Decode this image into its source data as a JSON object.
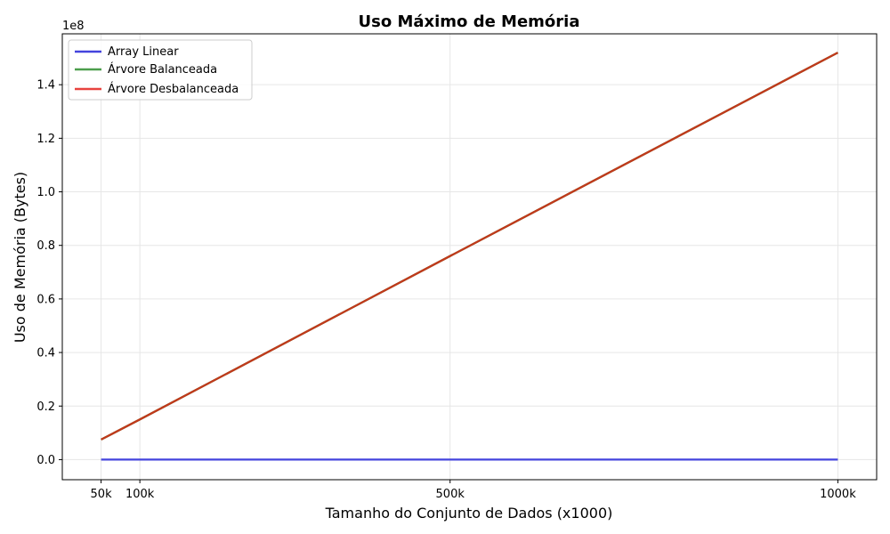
{
  "chart_data": {
    "type": "line",
    "title": "Uso Máximo de Memória",
    "xlabel": "Tamanho do Conjunto de Dados (x1000)",
    "ylabel": "Uso de Memória (Bytes)",
    "y_offset_label": "1e8",
    "x_ticks": [
      {
        "value": 50000,
        "label": "50k"
      },
      {
        "value": 100000,
        "label": "100k"
      },
      {
        "value": 500000,
        "label": "500k"
      },
      {
        "value": 1000000,
        "label": "1000k"
      }
    ],
    "y_ticks": [
      {
        "value": 0,
        "label": "0.0"
      },
      {
        "value": 20000000,
        "label": "0.2"
      },
      {
        "value": 40000000,
        "label": "0.4"
      },
      {
        "value": 60000000,
        "label": "0.6"
      },
      {
        "value": 80000000,
        "label": "0.8"
      },
      {
        "value": 100000000,
        "label": "1.0"
      },
      {
        "value": 120000000,
        "label": "1.2"
      },
      {
        "value": 140000000,
        "label": "1.4"
      }
    ],
    "xlim": [
      0,
      1050000
    ],
    "ylim": [
      -7500000,
      159000000
    ],
    "grid": true,
    "legend_position": "top-left",
    "series": [
      {
        "name": "Array Linear",
        "color": "#4444dd",
        "x": [
          50000,
          100000,
          500000,
          1000000
        ],
        "values": [
          0,
          0,
          0,
          0
        ]
      },
      {
        "name": "Árvore Balanceada",
        "color": "#4c9e4c",
        "x": [
          50000,
          100000,
          500000,
          1000000
        ],
        "values": [
          7500000,
          15000000,
          76000000,
          152000000
        ]
      },
      {
        "name": "Árvore Desbalanceada",
        "color": "#e8433f",
        "x": [
          50000,
          100000,
          500000,
          1000000
        ],
        "values": [
          7500000,
          15000000,
          76000000,
          152000000
        ]
      }
    ],
    "overlap_color": "#c0391b"
  }
}
